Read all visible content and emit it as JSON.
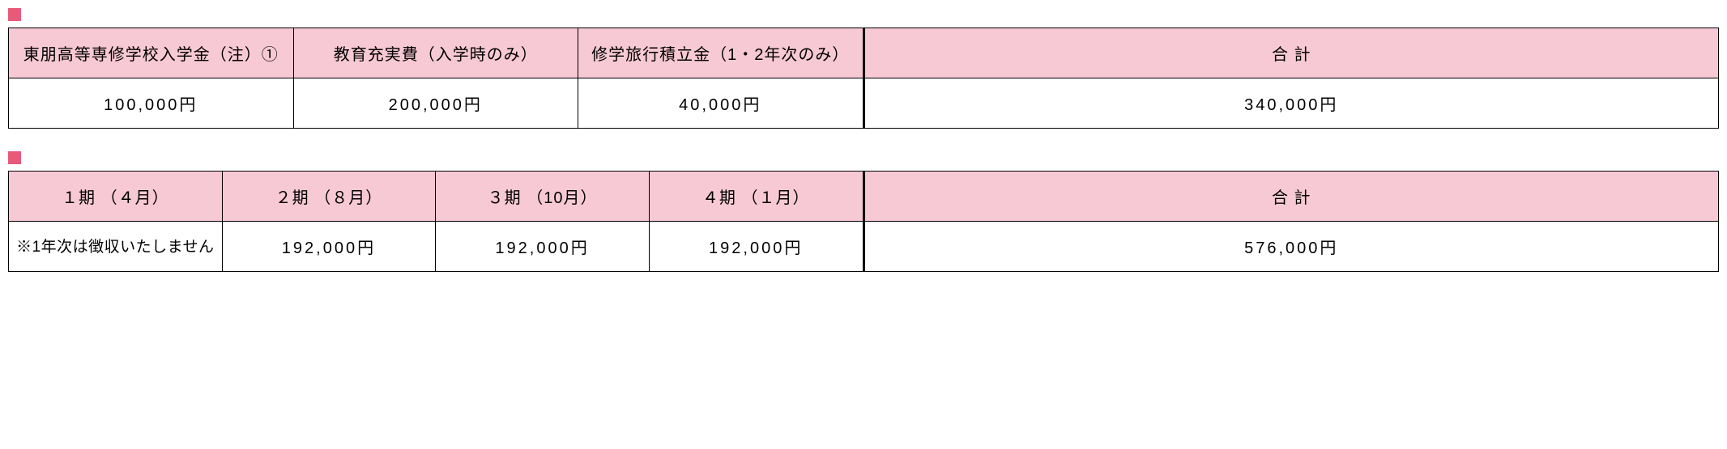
{
  "colors": {
    "bullet": "#e85a7a",
    "header_bg": "#f7c9d4",
    "border": "#000000",
    "text": "#000000",
    "value_bg": "#ffffff"
  },
  "table1": {
    "title": "",
    "columns": [
      {
        "header": "東朋高等専修学校入学金（注）①",
        "value": "100,000円"
      },
      {
        "header": "教育充実費（入学時のみ）",
        "value": "200,000円"
      },
      {
        "header": "修学旅行積立金（1・2年次のみ）",
        "value": "40,000円"
      }
    ],
    "total": {
      "header": "合 計",
      "value": "340,000円"
    }
  },
  "table2": {
    "title": "",
    "columns": [
      {
        "header": "１期 （４月）",
        "value": "※1年次は徴収いたしません",
        "is_note": true
      },
      {
        "header": "２期 （８月）",
        "value": "192,000円"
      },
      {
        "header": "３期 （10月）",
        "value": "192,000円"
      },
      {
        "header": "４期 （１月）",
        "value": "192,000円"
      }
    ],
    "total": {
      "header": "合 計",
      "value": "576,000円"
    }
  }
}
